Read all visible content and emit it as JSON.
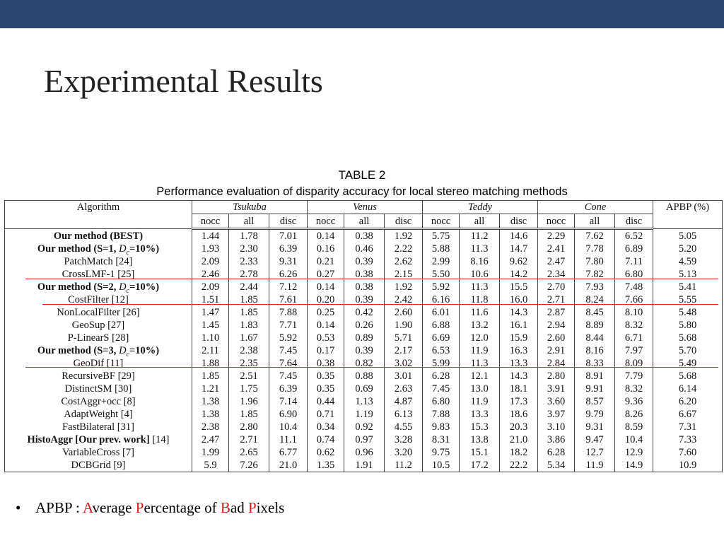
{
  "slide": {
    "title": "Experimental Results"
  },
  "table": {
    "caption_line1": "TABLE 2",
    "caption_line2": "Performance evaluation of disparity accuracy for local stereo matching methods",
    "header_algorithm": "Algorithm",
    "groups": [
      "Tsukuba",
      "Venus",
      "Teddy",
      "Cone"
    ],
    "apbp_header": "APBP (%)",
    "subheaders": [
      "nocc",
      "all",
      "disc",
      "nocc",
      "all",
      "disc",
      "nocc",
      "all",
      "disc",
      "nocc",
      "all",
      "disc"
    ],
    "rows": [
      {
        "name": "Our method (BEST)",
        "bold": true,
        "values": [
          "1.44",
          "1.78",
          "7.01",
          "0.14",
          "0.38",
          "1.92",
          "5.75",
          "11.2",
          "14.6",
          "2.29",
          "7.62",
          "6.52",
          "5.05"
        ]
      },
      {
        "name": "Our method (S=1, Dc=10%)",
        "bold": true,
        "values": [
          "1.93",
          "2.30",
          "6.39",
          "0.16",
          "0.46",
          "2.22",
          "5.88",
          "11.3",
          "14.7",
          "2.41",
          "7.78",
          "6.89",
          "5.20"
        ]
      },
      {
        "name": "PatchMatch [24]",
        "bold": false,
        "values": [
          "2.09",
          "2.33",
          "9.31",
          "0.21",
          "0.39",
          "2.62",
          "2.99",
          "8.16",
          "9.62",
          "2.47",
          "7.80",
          "7.11",
          "4.59"
        ]
      },
      {
        "name": "CrossLMF-1 [25]",
        "bold": false,
        "values": [
          "2.46",
          "2.78",
          "6.26",
          "0.27",
          "0.38",
          "2.15",
          "5.50",
          "10.6",
          "14.2",
          "2.34",
          "7.82",
          "6.80",
          "5.13"
        ]
      },
      {
        "name": "Our method (S=2, Dc=10%)",
        "bold": true,
        "values": [
          "2.09",
          "2.44",
          "7.12",
          "0.14",
          "0.38",
          "1.92",
          "5.92",
          "11.3",
          "15.5",
          "2.70",
          "7.93",
          "7.48",
          "5.41"
        ]
      },
      {
        "name": "CostFilter [12]",
        "bold": false,
        "values": [
          "1.51",
          "1.85",
          "7.61",
          "0.20",
          "0.39",
          "2.42",
          "6.16",
          "11.8",
          "16.0",
          "2.71",
          "8.24",
          "7.66",
          "5.55"
        ]
      },
      {
        "name": "NonLocalFilter [26]",
        "bold": false,
        "values": [
          "1.47",
          "1.85",
          "7.88",
          "0.25",
          "0.42",
          "2.60",
          "6.01",
          "11.6",
          "14.3",
          "2.87",
          "8.45",
          "8.10",
          "5.48"
        ]
      },
      {
        "name": "GeoSup [27]",
        "bold": false,
        "values": [
          "1.45",
          "1.83",
          "7.71",
          "0.14",
          "0.26",
          "1.90",
          "6.88",
          "13.2",
          "16.1",
          "2.94",
          "8.89",
          "8.32",
          "5.80"
        ]
      },
      {
        "name": "P-LinearS [28]",
        "bold": false,
        "values": [
          "1.10",
          "1.67",
          "5.92",
          "0.53",
          "0.89",
          "5.71",
          "6.69",
          "12.0",
          "15.9",
          "2.60",
          "8.44",
          "6.71",
          "5.68"
        ]
      },
      {
        "name": "Our method (S=3, Dc=10%)",
        "bold": true,
        "values": [
          "2.11",
          "2.38",
          "7.45",
          "0.17",
          "0.39",
          "2.17",
          "6.53",
          "11.9",
          "16.3",
          "2.91",
          "8.16",
          "7.97",
          "5.70"
        ]
      },
      {
        "name": "GeoDif [11]",
        "bold": false,
        "values": [
          "1.88",
          "2.35",
          "7.64",
          "0.38",
          "0.82",
          "3.02",
          "5.99",
          "11.3",
          "13.3",
          "2.84",
          "8.33",
          "8.09",
          "5.49"
        ]
      },
      {
        "name": "RecursiveBF [29]",
        "bold": false,
        "values": [
          "1.85",
          "2.51",
          "7.45",
          "0.35",
          "0.88",
          "3.01",
          "6.28",
          "12.1",
          "14.3",
          "2.80",
          "8.91",
          "7.79",
          "5.68"
        ]
      },
      {
        "name": "DistinctSM [30]",
        "bold": false,
        "values": [
          "1.21",
          "1.75",
          "6.39",
          "0.35",
          "0.69",
          "2.63",
          "7.45",
          "13.0",
          "18.1",
          "3.91",
          "9.91",
          "8.32",
          "6.14"
        ]
      },
      {
        "name": "CostAggr+occ [8]",
        "bold": false,
        "values": [
          "1.38",
          "1.96",
          "7.14",
          "0.44",
          "1.13",
          "4.87",
          "6.80",
          "11.9",
          "17.3",
          "3.60",
          "8.57",
          "9.36",
          "6.20"
        ]
      },
      {
        "name": "AdaptWeight [4]",
        "bold": false,
        "values": [
          "1.38",
          "1.85",
          "6.90",
          "0.71",
          "1.19",
          "6.13",
          "7.88",
          "13.3",
          "18.6",
          "3.97",
          "9.79",
          "8.26",
          "6.67"
        ]
      },
      {
        "name": "FastBilateral [31]",
        "bold": false,
        "values": [
          "2.38",
          "2.80",
          "10.4",
          "0.34",
          "0.92",
          "4.55",
          "9.83",
          "15.3",
          "20.3",
          "3.10",
          "9.31",
          "8.59",
          "7.31"
        ]
      },
      {
        "name": "HistoAggr [Our prev. work] [14]",
        "bold": "partial",
        "values": [
          "2.47",
          "2.71",
          "11.1",
          "0.74",
          "0.97",
          "3.28",
          "8.31",
          "13.8",
          "21.0",
          "3.86",
          "9.47",
          "10.4",
          "7.33"
        ]
      },
      {
        "name": "VariableCross [7]",
        "bold": false,
        "values": [
          "1.99",
          "2.65",
          "6.77",
          "0.62",
          "0.96",
          "3.20",
          "9.75",
          "15.1",
          "18.2",
          "6.28",
          "12.7",
          "12.9",
          "7.60"
        ]
      },
      {
        "name": "DCBGrid [9]",
        "bold": false,
        "values": [
          "5.9",
          "7.26",
          "21.0",
          "1.35",
          "1.91",
          "11.2",
          "10.5",
          "17.2",
          "22.2",
          "5.34",
          "11.9",
          "14.9",
          "10.9"
        ]
      }
    ]
  },
  "bullet": {
    "symbol": "•",
    "prefix": "APBP : ",
    "a": "A",
    "a_rest": "verage ",
    "p": "P",
    "p_rest": "ercentage of  ",
    "b": "B",
    "b_rest": "ad ",
    "p2": "P",
    "p2_rest": "ixels"
  },
  "colors": {
    "topbar": "#2e4470",
    "highlight": "#d21a1a"
  }
}
